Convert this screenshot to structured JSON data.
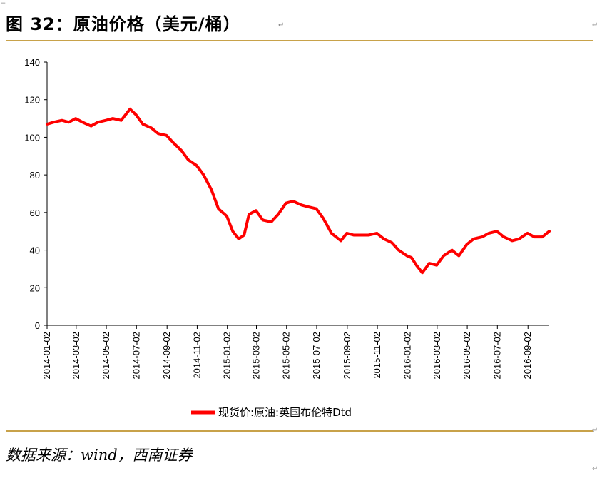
{
  "figure_title": "图 32：原油价格（美元/桶）",
  "source_text": "数据来源：wind，西南证券",
  "accent_color": "#c8a24a",
  "chart_data": {
    "type": "line",
    "title": "",
    "xlabel": "",
    "ylabel": "",
    "ylim": [
      0,
      140
    ],
    "yticks": [
      "0",
      "20",
      "40",
      "60",
      "80",
      "100",
      "120",
      "140"
    ],
    "xticks": [
      "2014-01-02",
      "2014-03-02",
      "2014-05-02",
      "2014-07-02",
      "2014-09-02",
      "2014-11-02",
      "2015-01-02",
      "2015-03-02",
      "2015-05-02",
      "2015-07-02",
      "2015-09-02",
      "2015-11-02",
      "2016-01-02",
      "2016-03-02",
      "2016-05-02",
      "2016-07-02",
      "2016-09-02"
    ],
    "grid": false,
    "legend_position": "bottom",
    "series": [
      {
        "name": "现货价:原油:英国布伦特Dtd",
        "color": "#ff0000",
        "x": [
          "2014-01-02",
          "2014-01-15",
          "2014-02-01",
          "2014-02-15",
          "2014-03-01",
          "2014-03-15",
          "2014-04-01",
          "2014-04-15",
          "2014-05-01",
          "2014-05-15",
          "2014-06-01",
          "2014-06-19",
          "2014-07-01",
          "2014-07-15",
          "2014-08-01",
          "2014-08-15",
          "2014-09-01",
          "2014-09-15",
          "2014-10-01",
          "2014-10-15",
          "2014-11-01",
          "2014-11-15",
          "2014-12-01",
          "2014-12-15",
          "2015-01-01",
          "2015-01-13",
          "2015-01-25",
          "2015-02-05",
          "2015-02-15",
          "2015-03-01",
          "2015-03-15",
          "2015-04-01",
          "2015-04-15",
          "2015-05-01",
          "2015-05-15",
          "2015-06-01",
          "2015-06-15",
          "2015-07-01",
          "2015-07-15",
          "2015-08-01",
          "2015-08-20",
          "2015-09-01",
          "2015-09-15",
          "2015-10-01",
          "2015-10-15",
          "2015-11-01",
          "2015-11-15",
          "2015-12-01",
          "2015-12-15",
          "2016-01-01",
          "2016-01-10",
          "2016-01-20",
          "2016-02-01",
          "2016-02-15",
          "2016-03-01",
          "2016-03-15",
          "2016-04-01",
          "2016-04-15",
          "2016-05-01",
          "2016-05-15",
          "2016-06-01",
          "2016-06-15",
          "2016-07-01",
          "2016-07-15",
          "2016-08-01",
          "2016-08-15",
          "2016-09-01",
          "2016-09-15",
          "2016-10-01",
          "2016-10-15"
        ],
        "values": [
          107,
          108,
          109,
          108,
          110,
          108,
          106,
          108,
          109,
          110,
          109,
          115,
          112,
          107,
          105,
          102,
          101,
          97,
          93,
          88,
          85,
          80,
          72,
          62,
          58,
          50,
          46,
          48,
          59,
          61,
          56,
          55,
          59,
          65,
          66,
          64,
          63,
          62,
          57,
          49,
          45,
          49,
          48,
          48,
          48,
          49,
          46,
          44,
          40,
          37,
          36,
          32,
          28,
          33,
          32,
          37,
          40,
          37,
          43,
          46,
          47,
          49,
          50,
          47,
          45,
          46,
          49,
          47,
          47,
          50
        ]
      }
    ]
  }
}
